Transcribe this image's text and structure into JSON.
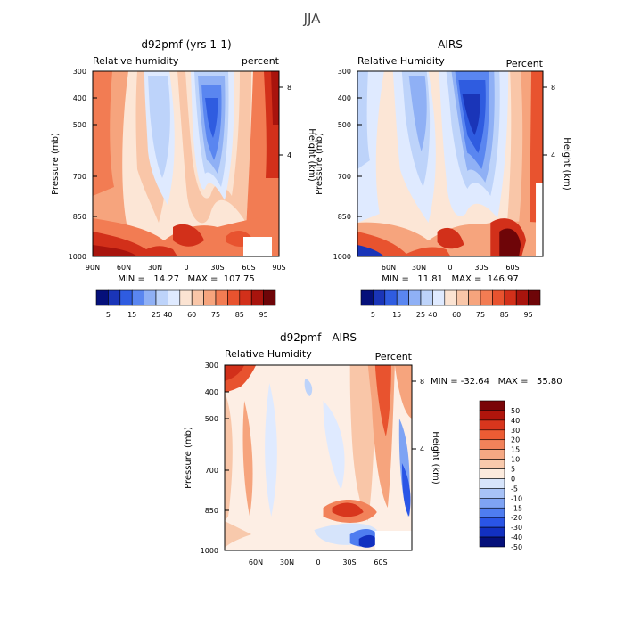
{
  "figure": {
    "title": "JJA"
  },
  "chart_data": [
    {
      "type": "heatmap",
      "title": "d92pmf (yrs 1-1)",
      "subtitle_left": "Relative humidity",
      "subtitle_right": "percent",
      "ylabel": "Pressure (mb)",
      "ylabel_right": "Height (km)",
      "yticks": [
        "300",
        "400",
        "500",
        "700",
        "850",
        "1000"
      ],
      "yticks_right": [
        "8",
        "4"
      ],
      "xticks": [
        "90N",
        "60N",
        "30N",
        "0",
        "30S",
        "60S",
        "90S"
      ],
      "stats": "MIN =   14.27   MAX =  107.75",
      "colorbar_labels": [
        "5",
        "15",
        "25",
        "40",
        "60",
        "75",
        "85",
        "95"
      ]
    },
    {
      "type": "heatmap",
      "title": "AIRS",
      "subtitle_left": "Relative Humidity",
      "subtitle_right": "Percent",
      "ylabel": "Pressure (mb)",
      "ylabel_right": "Height (km)",
      "yticks": [
        "300",
        "400",
        "500",
        "700",
        "850",
        "1000"
      ],
      "yticks_right": [
        "8",
        "4"
      ],
      "xticks": [
        "60N",
        "30N",
        "0",
        "30S",
        "60S"
      ],
      "stats": "MIN =   11.81   MAX =  146.97",
      "colorbar_labels": [
        "5",
        "15",
        "25",
        "40",
        "60",
        "75",
        "85",
        "95"
      ]
    },
    {
      "type": "heatmap",
      "title": "d92pmf - AIRS",
      "subtitle_left": "Relative Humidity",
      "subtitle_right": "Percent",
      "ylabel": "Pressure (mb)",
      "ylabel_right": "Height (km)",
      "yticks": [
        "300",
        "400",
        "500",
        "700",
        "850",
        "1000"
      ],
      "yticks_right": [
        "8",
        "4"
      ],
      "xticks": [
        "60N",
        "30N",
        "0",
        "30S",
        "60S"
      ],
      "stats": "MIN = -32.64   MAX =   55.80",
      "colorbar_labels": [
        "50",
        "40",
        "30",
        "20",
        "15",
        "10",
        "5",
        "0",
        "-5",
        "-10",
        "-15",
        "-20",
        "-30",
        "-40",
        "-50"
      ]
    }
  ],
  "colors": {
    "abs_scale": [
      "#05107a",
      "#1a35b8",
      "#2f5ce0",
      "#5a86f0",
      "#8fb0f5",
      "#bdd3fa",
      "#dfeaff",
      "#fbe3d2",
      "#f9c6a8",
      "#f6a47d",
      "#f27c53",
      "#e8532f",
      "#d2301a",
      "#a8140d",
      "#6e0508"
    ],
    "diff_scale": [
      "#05107a",
      "#1230c0",
      "#2a55e6",
      "#4f7df0",
      "#7ea3f4",
      "#a7c2f7",
      "#d6e4fb",
      "#fcebde",
      "#f8c9ac",
      "#f5a883",
      "#f2825a",
      "#ec5c34",
      "#d8361d",
      "#b0150c",
      "#7a0508"
    ]
  }
}
